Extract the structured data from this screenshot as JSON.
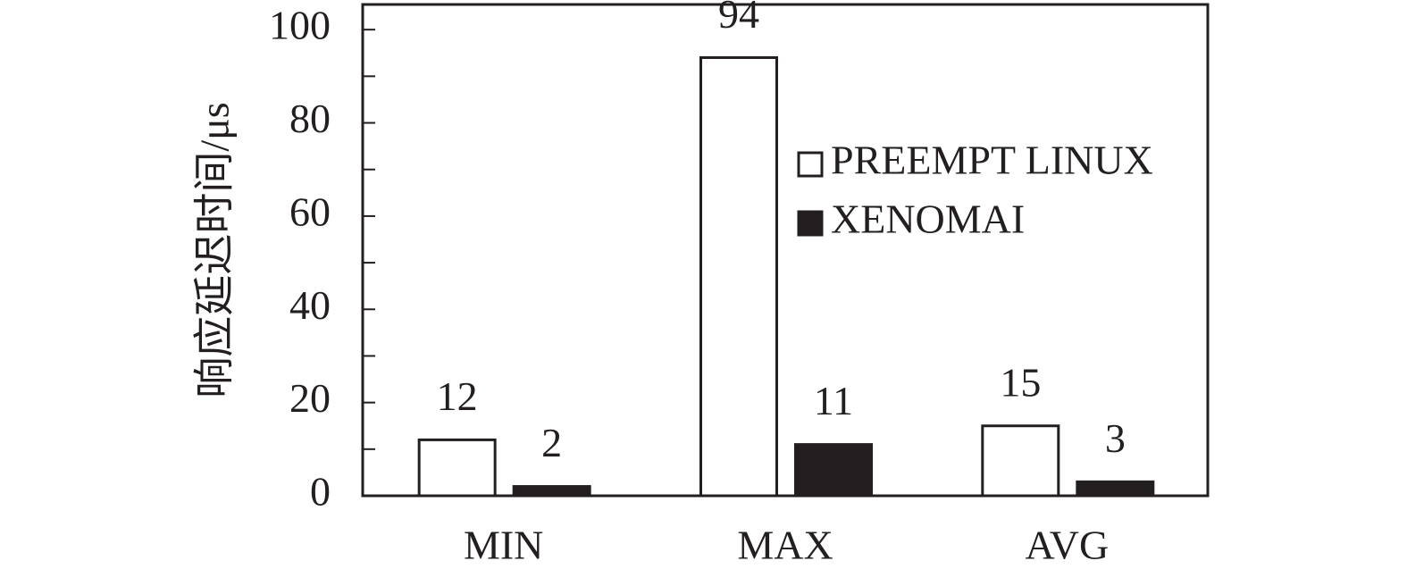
{
  "chart_data": {
    "type": "bar",
    "y_label": "响应延迟时间/μs",
    "categories": [
      "MIN",
      "MAX",
      "AVG"
    ],
    "series": [
      {
        "name": "PREEMPT LINUX",
        "color": "#ffffff",
        "values": [
          12,
          94,
          15
        ]
      },
      {
        "name": "XENOMAI",
        "color": "#231f20",
        "values": [
          2,
          11,
          3
        ]
      }
    ],
    "ylim": [
      0,
      105.4
    ],
    "yticks": [
      0,
      20,
      40,
      60,
      80,
      100
    ],
    "y_minor_ticks": [
      10,
      30,
      50,
      70,
      90
    ],
    "legend": "right"
  }
}
